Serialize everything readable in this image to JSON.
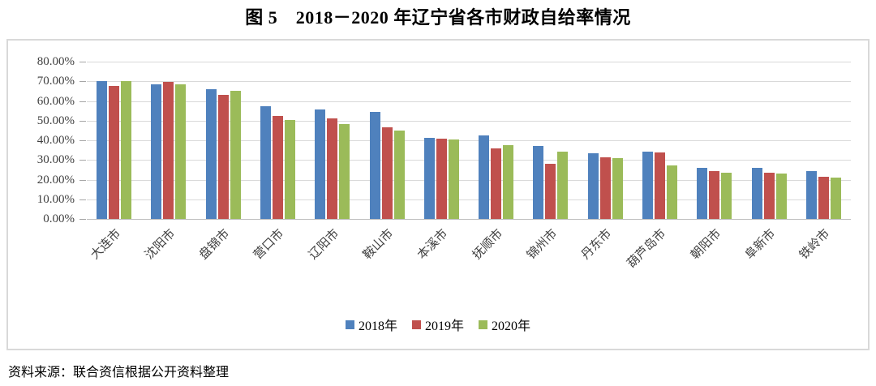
{
  "page": {
    "source_note": "资料来源：联合资信根据公开资料整理"
  },
  "chart_data": {
    "type": "bar",
    "title": "图 5　2018－2020 年辽宁省各市财政自给率情况",
    "categories": [
      "大连市",
      "沈阳市",
      "盘锦市",
      "营口市",
      "辽阳市",
      "鞍山市",
      "本溪市",
      "抚顺市",
      "锦州市",
      "丹东市",
      "葫芦岛市",
      "朝阳市",
      "阜新市",
      "铁岭市"
    ],
    "series": [
      {
        "name": "2018年",
        "color": "#4F81BD",
        "values": [
          70.0,
          68.5,
          65.8,
          57.5,
          55.8,
          54.5,
          41.3,
          42.3,
          37.2,
          33.6,
          34.3,
          26.0,
          25.8,
          24.3
        ]
      },
      {
        "name": "2019年",
        "color": "#C0504D",
        "values": [
          67.5,
          69.5,
          63.2,
          52.5,
          51.0,
          46.6,
          40.9,
          35.8,
          28.0,
          31.5,
          33.7,
          24.3,
          23.5,
          21.5
        ]
      },
      {
        "name": "2020年",
        "color": "#9BBB59",
        "values": [
          70.2,
          68.3,
          65.0,
          50.2,
          48.4,
          45.0,
          40.3,
          37.4,
          34.3,
          31.1,
          27.3,
          23.3,
          22.9,
          21.0
        ]
      }
    ],
    "ylim": [
      0,
      80
    ],
    "ytick_step": 10,
    "ytick_labels": [
      "80.00%",
      "70.00%",
      "60.00%",
      "50.00%",
      "40.00%",
      "30.00%",
      "20.00%",
      "10.00%",
      "0.00%"
    ],
    "grid": true,
    "legend_position": "bottom",
    "xlabel": "",
    "ylabel": ""
  }
}
